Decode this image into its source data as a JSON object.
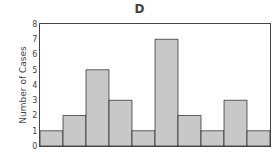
{
  "chart_data": {
    "type": "bar",
    "title": "D",
    "ylabel": "Number of Cases",
    "categories": [
      null,
      null,
      null,
      null,
      null,
      null,
      null,
      null,
      null,
      null
    ],
    "values": [
      1,
      2,
      5,
      3,
      1,
      7,
      2,
      1,
      3,
      1
    ],
    "color": "#c8c8c8",
    "ylim": [
      0,
      8
    ],
    "yticks": [
      0,
      1,
      2,
      3,
      4,
      5,
      6,
      7,
      8
    ],
    "grid": false,
    "tick_labels": "y"
  }
}
